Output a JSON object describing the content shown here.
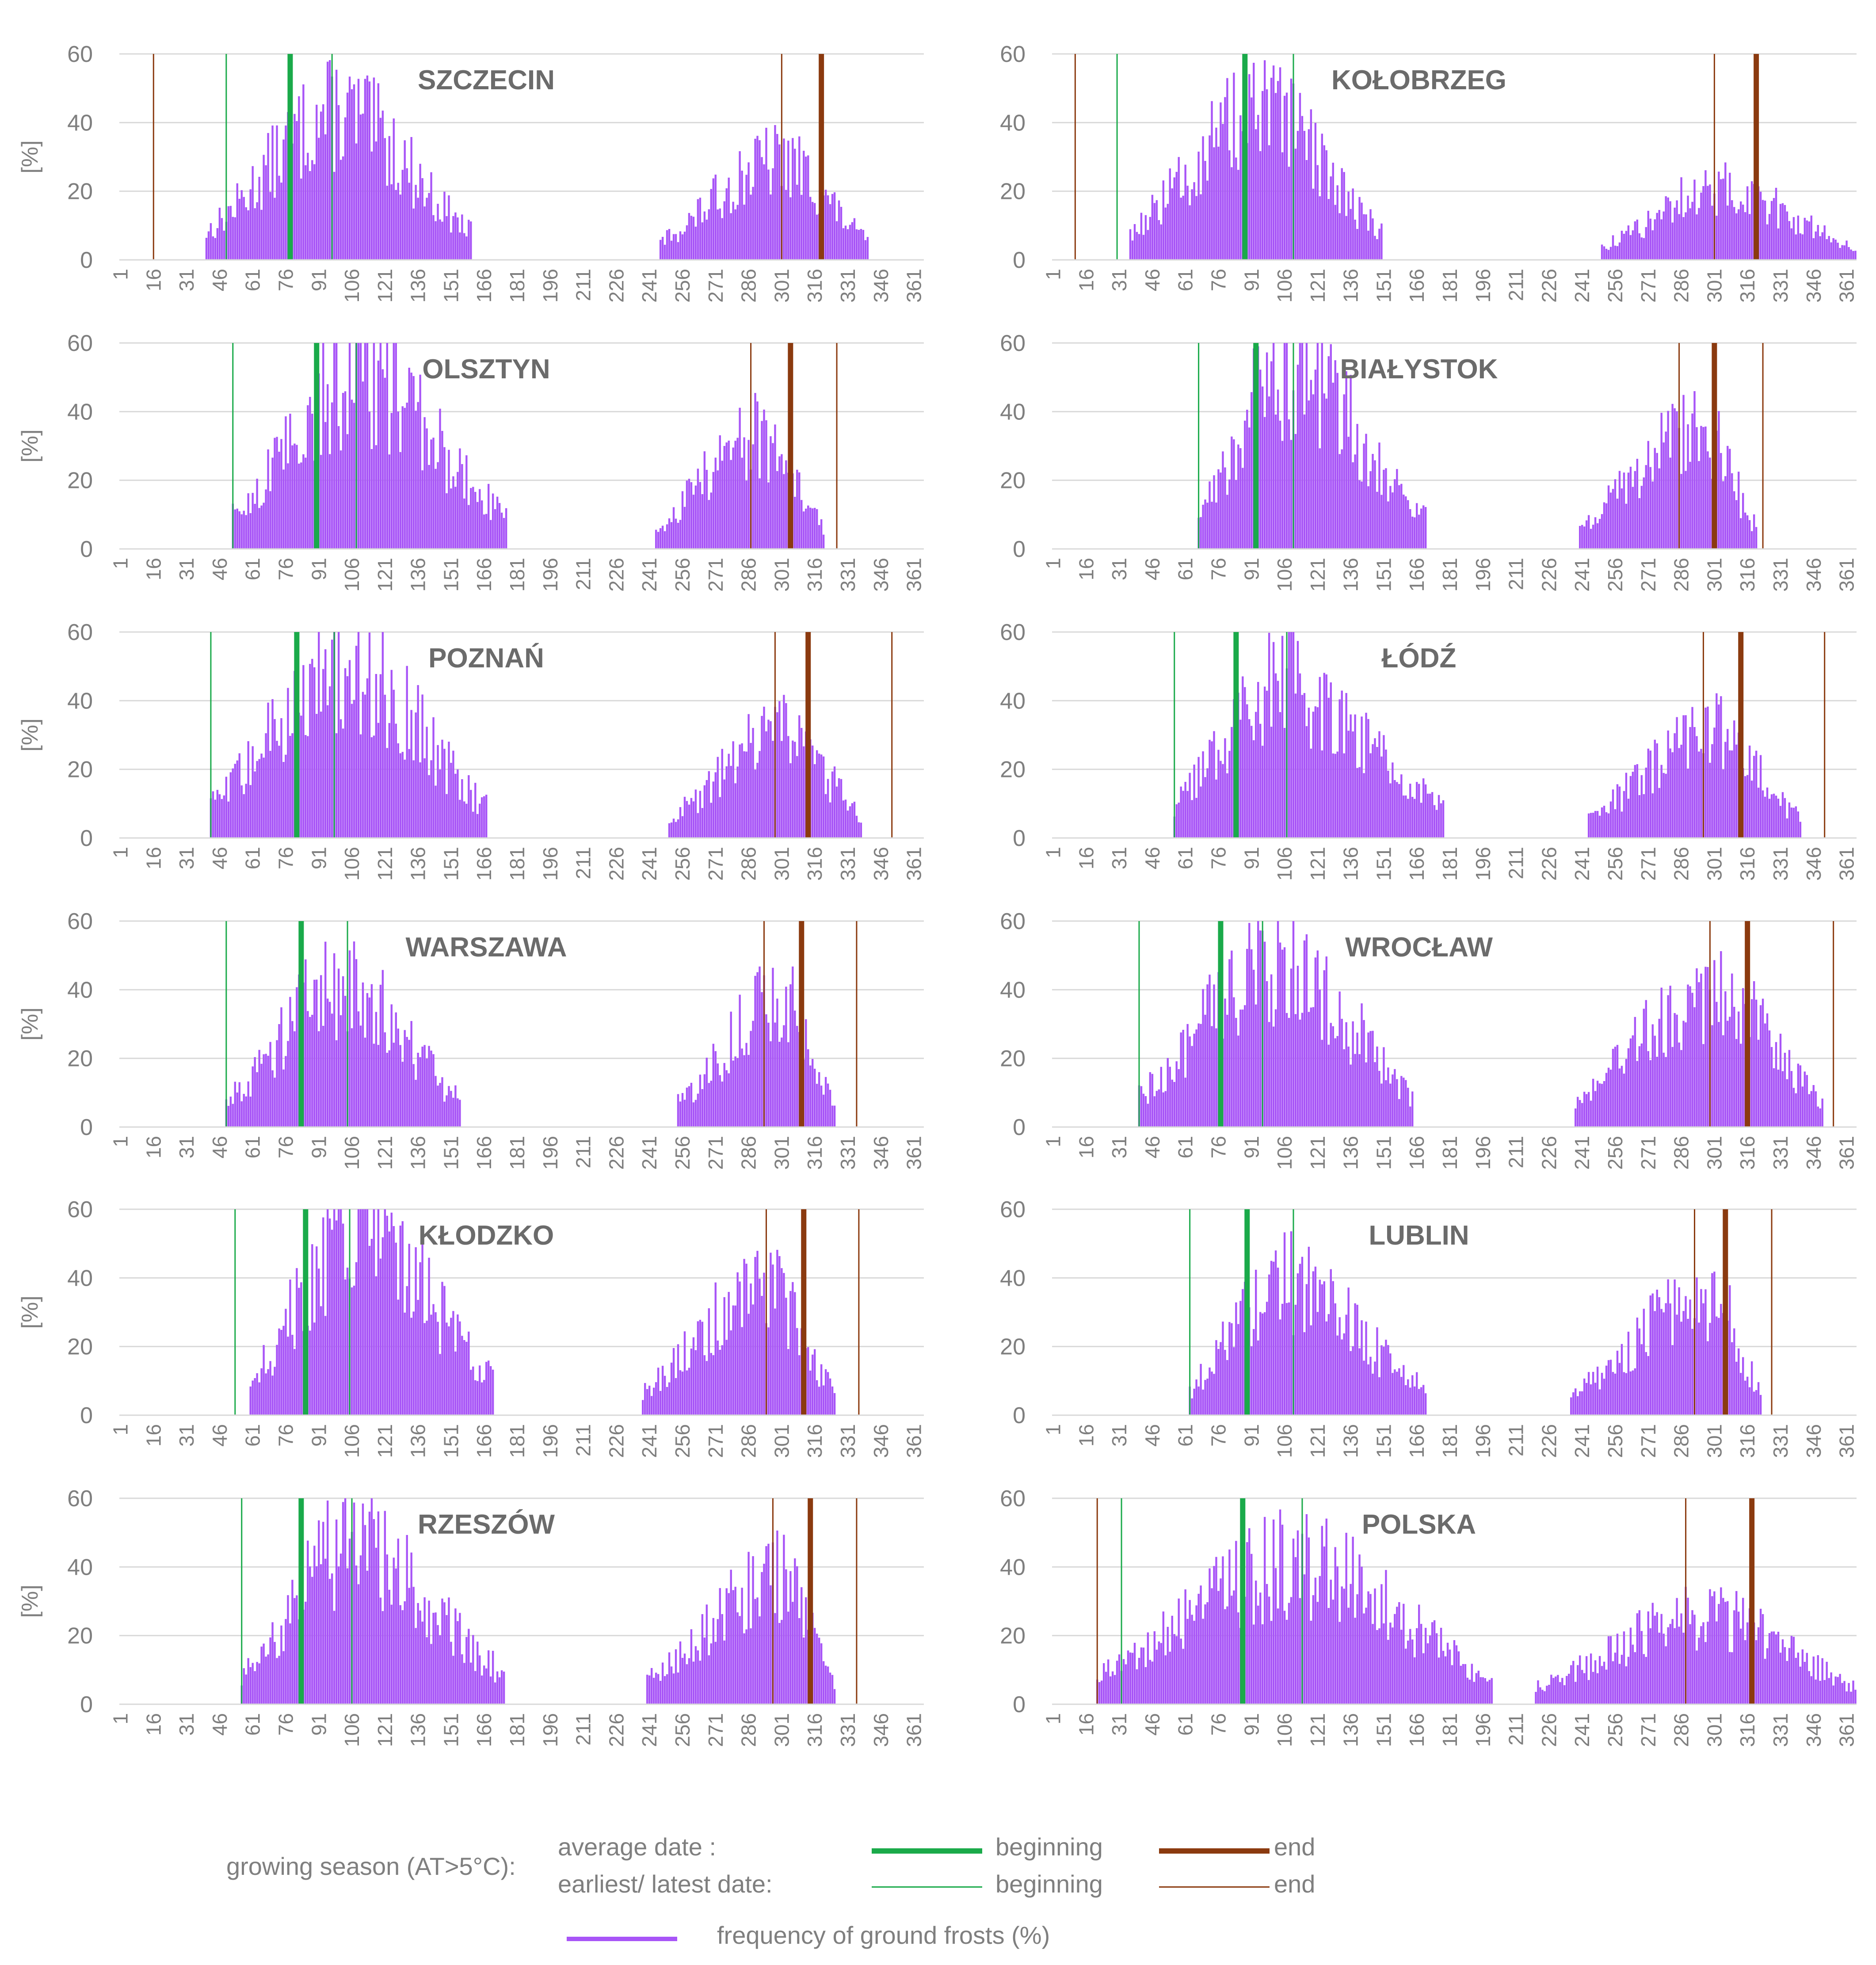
{
  "colors": {
    "frost": "#a855f7",
    "begin": "#1aaa4a",
    "end": "#8b3a0f",
    "grid": "#d9d9d9",
    "text": "#7f7f7f",
    "title": "#6b6b6b"
  },
  "legend": {
    "prefix": "growing season (AT>5°C):",
    "average_label": "average date :",
    "extreme_label": "earliest/ latest date:",
    "beginning_label": "beginning",
    "end_label": "end",
    "frost_label": "frequency of ground frosts (%)"
  },
  "chart_data": [
    {
      "type": "bar",
      "title": "SZCZECIN",
      "ylabel": "[%]",
      "xlim": [
        1,
        365
      ],
      "ylim": [
        0,
        60
      ],
      "yticks": [
        0,
        20,
        40,
        60
      ],
      "xticks": [
        1,
        16,
        31,
        46,
        61,
        76,
        91,
        106,
        121,
        136,
        151,
        166,
        181,
        196,
        211,
        226,
        241,
        256,
        271,
        286,
        301,
        316,
        331,
        346,
        361
      ],
      "begin_avg": 78,
      "begin_earliest": 49,
      "begin_latest": 97,
      "end_avg": 319,
      "end_earliest": 16,
      "end_latest": 301,
      "spring": {
        "start": 40,
        "peak": 100,
        "peak_val": 46,
        "end": 160
      },
      "autumn": {
        "start": 246,
        "peak": 300,
        "peak_val": 31,
        "end": 340
      }
    },
    {
      "type": "bar",
      "title": "KOŁOBRZEG",
      "ylabel": "",
      "xlim": [
        1,
        365
      ],
      "ylim": [
        0,
        60
      ],
      "yticks": [
        0,
        20,
        40,
        60
      ],
      "xticks": [
        1,
        16,
        31,
        46,
        61,
        76,
        91,
        106,
        121,
        136,
        151,
        166,
        181,
        196,
        211,
        226,
        241,
        256,
        271,
        286,
        301,
        316,
        331,
        346,
        361
      ],
      "begin_avg": 88,
      "begin_earliest": 30,
      "begin_latest": 110,
      "end_avg": 320,
      "end_earliest": 11,
      "end_latest": 301,
      "spring": {
        "start": 36,
        "peak": 95,
        "peak_val": 46,
        "end": 150
      },
      "autumn": {
        "start": 250,
        "peak": 302,
        "peak_val": 22,
        "end": 365
      }
    },
    {
      "type": "bar",
      "title": "OLSZTYN",
      "ylabel": "[%]",
      "xlim": [
        1,
        365
      ],
      "ylim": [
        0,
        60
      ],
      "yticks": [
        0,
        20,
        40,
        60
      ],
      "xticks": [
        1,
        16,
        31,
        46,
        61,
        76,
        91,
        106,
        121,
        136,
        151,
        166,
        181,
        196,
        211,
        226,
        241,
        256,
        271,
        286,
        301,
        316,
        331,
        346,
        361
      ],
      "begin_avg": 90,
      "begin_earliest": 52,
      "begin_latest": 108,
      "end_avg": 305,
      "end_earliest": 287,
      "end_latest": 326,
      "spring": {
        "start": 52,
        "peak": 108,
        "peak_val": 53,
        "end": 176
      },
      "autumn": {
        "start": 244,
        "peak": 290,
        "peak_val": 35,
        "end": 320
      }
    },
    {
      "type": "bar",
      "title": "BIAŁYSTOK",
      "ylabel": "",
      "xlim": [
        1,
        365
      ],
      "ylim": [
        0,
        60
      ],
      "yticks": [
        0,
        20,
        40,
        60
      ],
      "xticks": [
        1,
        16,
        31,
        46,
        61,
        76,
        91,
        106,
        121,
        136,
        151,
        166,
        181,
        196,
        211,
        226,
        241,
        256,
        271,
        286,
        301,
        316,
        331,
        346,
        361
      ],
      "begin_avg": 93,
      "begin_earliest": 67,
      "begin_latest": 110,
      "end_avg": 301,
      "end_earliest": 285,
      "end_latest": 323,
      "spring": {
        "start": 67,
        "peak": 106,
        "peak_val": 57,
        "end": 170
      },
      "autumn": {
        "start": 240,
        "peak": 295,
        "peak_val": 38,
        "end": 320
      }
    },
    {
      "type": "bar",
      "title": "POZNAŃ",
      "ylabel": "[%]",
      "xlim": [
        1,
        365
      ],
      "ylim": [
        0,
        60
      ],
      "yticks": [
        0,
        20,
        40,
        60
      ],
      "xticks": [
        1,
        16,
        31,
        46,
        61,
        76,
        91,
        106,
        121,
        136,
        151,
        166,
        181,
        196,
        211,
        226,
        241,
        256,
        271,
        286,
        301,
        316,
        331,
        346,
        361
      ],
      "begin_avg": 81,
      "begin_earliest": 42,
      "begin_latest": 98,
      "end_avg": 313,
      "end_earliest": 298,
      "end_latest": 351,
      "spring": {
        "start": 42,
        "peak": 103,
        "peak_val": 54,
        "end": 167
      },
      "autumn": {
        "start": 250,
        "peak": 303,
        "peak_val": 33,
        "end": 337
      }
    },
    {
      "type": "bar",
      "title": "ŁÓDŹ",
      "ylabel": "",
      "xlim": [
        1,
        365
      ],
      "ylim": [
        0,
        60
      ],
      "yticks": [
        0,
        20,
        40,
        60
      ],
      "xticks": [
        1,
        16,
        31,
        46,
        61,
        76,
        91,
        106,
        121,
        136,
        151,
        166,
        181,
        196,
        211,
        226,
        241,
        256,
        271,
        286,
        301,
        316,
        331,
        346,
        361
      ],
      "begin_avg": 84,
      "begin_earliest": 56,
      "begin_latest": 107,
      "end_avg": 313,
      "end_earliest": 296,
      "end_latest": 351,
      "spring": {
        "start": 56,
        "peak": 104,
        "peak_val": 50,
        "end": 178
      },
      "autumn": {
        "start": 244,
        "peak": 300,
        "peak_val": 33,
        "end": 340
      }
    },
    {
      "type": "bar",
      "title": "WARSZAWA",
      "ylabel": "[%]",
      "xlim": [
        1,
        365
      ],
      "ylim": [
        0,
        60
      ],
      "yticks": [
        0,
        20,
        40,
        60
      ],
      "xticks": [
        1,
        16,
        31,
        46,
        61,
        76,
        91,
        106,
        121,
        136,
        151,
        166,
        181,
        196,
        211,
        226,
        241,
        256,
        271,
        286,
        301,
        316,
        331,
        346,
        361
      ],
      "begin_avg": 83,
      "begin_earliest": 49,
      "begin_latest": 104,
      "end_avg": 310,
      "end_earliest": 293,
      "end_latest": 335,
      "spring": {
        "start": 49,
        "peak": 102,
        "peak_val": 45,
        "end": 155
      },
      "autumn": {
        "start": 254,
        "peak": 300,
        "peak_val": 40,
        "end": 325
      }
    },
    {
      "type": "bar",
      "title": "WROCŁAW",
      "ylabel": "",
      "xlim": [
        1,
        365
      ],
      "ylim": [
        0,
        60
      ],
      "yticks": [
        0,
        20,
        40,
        60
      ],
      "xticks": [
        1,
        16,
        31,
        46,
        61,
        76,
        91,
        106,
        121,
        136,
        151,
        166,
        181,
        196,
        211,
        226,
        241,
        256,
        271,
        286,
        301,
        316,
        331,
        346,
        361
      ],
      "begin_avg": 77,
      "begin_earliest": 40,
      "begin_latest": 96,
      "end_avg": 316,
      "end_earliest": 299,
      "end_latest": 355,
      "spring": {
        "start": 40,
        "peak": 104,
        "peak_val": 52,
        "end": 164
      },
      "autumn": {
        "start": 238,
        "peak": 300,
        "peak_val": 42,
        "end": 350
      }
    },
    {
      "type": "bar",
      "title": "KŁODZKO",
      "ylabel": "[%]",
      "xlim": [
        1,
        365
      ],
      "ylim": [
        0,
        60
      ],
      "yticks": [
        0,
        20,
        40,
        60
      ],
      "xticks": [
        1,
        16,
        31,
        46,
        61,
        76,
        91,
        106,
        121,
        136,
        151,
        166,
        181,
        196,
        211,
        226,
        241,
        256,
        271,
        286,
        301,
        316,
        331,
        346,
        361
      ],
      "begin_avg": 85,
      "begin_earliest": 53,
      "begin_latest": 105,
      "end_avg": 311,
      "end_earliest": 294,
      "end_latest": 336,
      "spring": {
        "start": 60,
        "peak": 108,
        "peak_val": 58,
        "end": 170
      },
      "autumn": {
        "start": 238,
        "peak": 294,
        "peak_val": 40,
        "end": 325
      }
    },
    {
      "type": "bar",
      "title": "LUBLIN",
      "ylabel": "",
      "xlim": [
        1,
        365
      ],
      "ylim": [
        0,
        60
      ],
      "yticks": [
        0,
        20,
        40,
        60
      ],
      "xticks": [
        1,
        16,
        31,
        46,
        61,
        76,
        91,
        106,
        121,
        136,
        151,
        166,
        181,
        196,
        211,
        226,
        241,
        256,
        271,
        286,
        301,
        316,
        331,
        346,
        361
      ],
      "begin_avg": 89,
      "begin_earliest": 63,
      "begin_latest": 110,
      "end_avg": 306,
      "end_earliest": 292,
      "end_latest": 327,
      "spring": {
        "start": 63,
        "peak": 104,
        "peak_val": 42,
        "end": 170
      },
      "autumn": {
        "start": 236,
        "peak": 300,
        "peak_val": 37,
        "end": 322
      }
    },
    {
      "type": "bar",
      "title": "RZESZÓW",
      "ylabel": "[%]",
      "xlim": [
        1,
        365
      ],
      "ylim": [
        0,
        60
      ],
      "yticks": [
        0,
        20,
        40,
        60
      ],
      "xticks": [
        1,
        16,
        31,
        46,
        61,
        76,
        91,
        106,
        121,
        136,
        151,
        166,
        181,
        196,
        211,
        226,
        241,
        256,
        271,
        286,
        301,
        316,
        331,
        346,
        361
      ],
      "begin_avg": 83,
      "begin_earliest": 56,
      "begin_latest": 106,
      "end_avg": 314,
      "end_earliest": 297,
      "end_latest": 335,
      "spring": {
        "start": 56,
        "peak": 104,
        "peak_val": 50,
        "end": 175
      },
      "autumn": {
        "start": 240,
        "peak": 298,
        "peak_val": 40,
        "end": 325
      }
    },
    {
      "type": "bar",
      "title": "POLSKA",
      "ylabel": "",
      "xlim": [
        1,
        365
      ],
      "ylim": [
        0,
        60
      ],
      "yticks": [
        0,
        20,
        40,
        60
      ],
      "xticks": [
        1,
        16,
        31,
        46,
        61,
        76,
        91,
        106,
        121,
        136,
        151,
        166,
        181,
        196,
        211,
        226,
        241,
        256,
        271,
        286,
        301,
        316,
        331,
        346,
        361
      ],
      "begin_avg": 87,
      "begin_earliest": 32,
      "begin_latest": 114,
      "end_avg": 318,
      "end_earliest": 21,
      "end_latest": 288,
      "spring": {
        "start": 21,
        "peak": 110,
        "peak_val": 44,
        "end": 200
      },
      "autumn": {
        "start": 220,
        "peak": 300,
        "peak_val": 28,
        "end": 365
      }
    }
  ]
}
